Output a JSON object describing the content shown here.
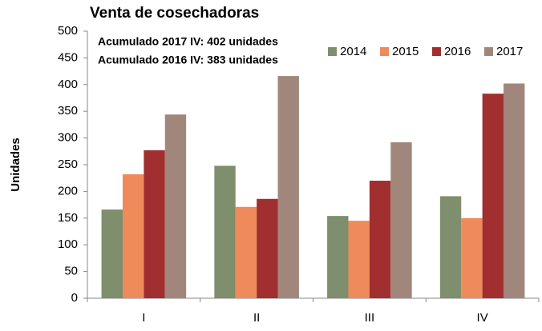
{
  "chart_data": {
    "type": "bar",
    "title": "Venta de cosechadoras",
    "y_label": "Unidades",
    "annotations": [
      "Acumulado 2017 IV: 402 unidades",
      "Acumulado 2016 IV: 383 unidades"
    ],
    "categories": [
      "I",
      "II",
      "III",
      "IV"
    ],
    "series": [
      {
        "name": "2014",
        "color": "#7f8e6c",
        "values": [
          166,
          248,
          154,
          191
        ]
      },
      {
        "name": "2015",
        "color": "#ef8a5a",
        "values": [
          232,
          171,
          145,
          150
        ]
      },
      {
        "name": "2016",
        "color": "#a12f2f",
        "values": [
          277,
          186,
          220,
          383
        ]
      },
      {
        "name": "2017",
        "color": "#a1877b",
        "values": [
          344,
          416,
          292,
          402
        ]
      }
    ],
    "ylim": [
      0,
      500
    ],
    "yticks": [
      0,
      50,
      100,
      150,
      200,
      250,
      300,
      350,
      400,
      450,
      500
    ],
    "grid": false
  }
}
